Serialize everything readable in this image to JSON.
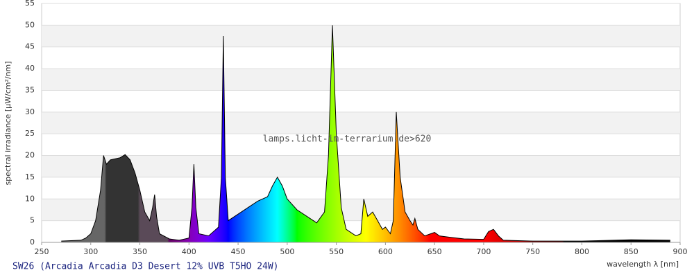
{
  "chart_data": {
    "type": "area",
    "ylabel": "spectral irradiance [µW/cm²/nm]",
    "xlabel": "wavelength λ [nm]",
    "annotation": "lamps.licht-im-terrarium.de>620",
    "caption": "SW26 (Arcadia Arcadia D3 Desert 12% UVB T5HO 24W)",
    "xlim": [
      250,
      900
    ],
    "xticks": [
      250,
      300,
      350,
      400,
      450,
      500,
      550,
      600,
      650,
      700,
      750,
      800,
      850,
      900
    ],
    "ylim": [
      0,
      55
    ],
    "yticks": [
      0,
      5,
      10,
      15,
      20,
      25,
      30,
      35,
      40,
      45,
      50,
      55
    ],
    "grid": true,
    "x": [
      270,
      290,
      295,
      300,
      305,
      310,
      313,
      316,
      320,
      330,
      335,
      340,
      345,
      350,
      355,
      360,
      363,
      365,
      367,
      370,
      380,
      390,
      400,
      403,
      405,
      407,
      410,
      420,
      430,
      433,
      435,
      437,
      440,
      450,
      460,
      470,
      480,
      485,
      490,
      495,
      500,
      510,
      520,
      530,
      538,
      542,
      546,
      550,
      555,
      560,
      570,
      575,
      578,
      582,
      587,
      592,
      597,
      600,
      605,
      608,
      611,
      615,
      620,
      625,
      628,
      630,
      633,
      640,
      650,
      655,
      665,
      680,
      700,
      705,
      710,
      715,
      720,
      750,
      800,
      850,
      890
    ],
    "values": [
      0.3,
      0.5,
      1,
      2,
      5,
      12,
      20,
      18,
      19,
      19.5,
      20.2,
      19,
      16,
      12,
      7,
      5,
      8,
      11,
      6,
      2,
      0.8,
      0.5,
      1,
      8,
      18,
      8,
      2,
      1.5,
      3.5,
      15,
      47.5,
      15,
      5,
      6.5,
      8,
      9.5,
      10.5,
      13,
      15,
      13,
      10,
      7.5,
      6,
      4.5,
      7,
      20,
      50,
      25,
      8,
      3,
      1.5,
      2,
      10,
      6,
      7,
      5,
      3,
      3.5,
      2,
      5,
      30,
      15,
      7,
      5,
      4,
      5.5,
      3,
      1.5,
      2.3,
      1.5,
      1.2,
      0.8,
      0.7,
      2.5,
      3,
      1.5,
      0.5,
      0.3,
      0.3,
      0.6,
      0.5
    ]
  }
}
